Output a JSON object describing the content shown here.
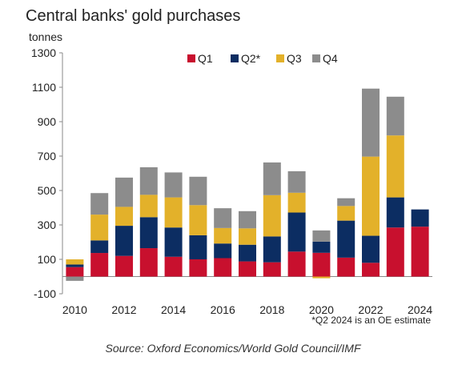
{
  "title": "Central banks' gold purchases",
  "unit_label": "tonnes",
  "note": "*Q2 2024 is an OE estimate",
  "source": "Source: Oxford Economics/World  Gold Council/IMF",
  "chart_data": {
    "type": "bar",
    "stacked": true,
    "title": "Central banks' gold purchases",
    "ylabel": "tonnes",
    "ylim": [
      -100,
      1300
    ],
    "yticks": [
      -100,
      100,
      300,
      500,
      700,
      900,
      1100,
      1300
    ],
    "x_tick_labels": [
      "2010",
      "2012",
      "2014",
      "2016",
      "2018",
      "2020",
      "2022",
      "2024"
    ],
    "legend_position": "top-center",
    "categories": [
      "2010",
      "2011",
      "2012",
      "2013",
      "2014",
      "2015",
      "2016",
      "2017",
      "2018",
      "2019",
      "2020",
      "2021",
      "2022",
      "2023",
      "2024"
    ],
    "series": [
      {
        "name": "Q1",
        "color": "#c8102e",
        "values": [
          55,
          137,
          120,
          165,
          115,
          100,
          107,
          88,
          83,
          145,
          138,
          110,
          80,
          285,
          290
        ]
      },
      {
        "name": "Q2*",
        "color": "#0c2d62",
        "values": [
          15,
          73,
          175,
          180,
          170,
          140,
          85,
          97,
          150,
          227,
          65,
          215,
          157,
          175,
          100
        ]
      },
      {
        "name": "Q3",
        "color": "#e3b12a",
        "values": [
          30,
          150,
          110,
          130,
          175,
          175,
          90,
          95,
          240,
          115,
          -10,
          85,
          460,
          360,
          0
        ]
      },
      {
        "name": "Q4",
        "color": "#8c8c8c",
        "values": [
          -25,
          125,
          170,
          160,
          145,
          165,
          115,
          100,
          190,
          125,
          65,
          45,
          395,
          225,
          0
        ]
      }
    ]
  }
}
